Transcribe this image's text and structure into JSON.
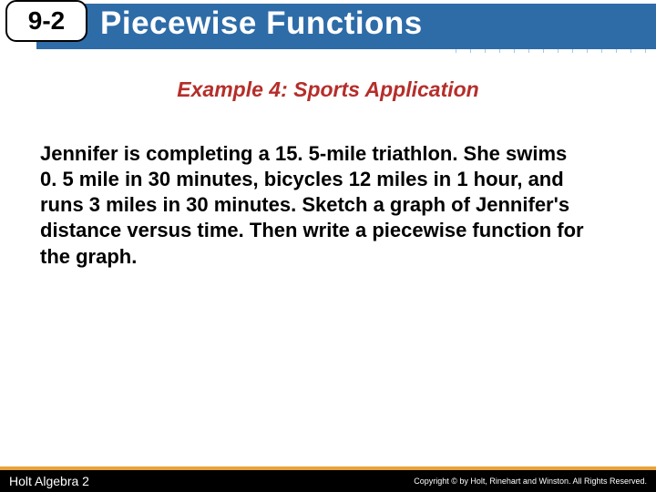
{
  "header": {
    "section_number": "9-2",
    "title": "Piecewise Functions",
    "banner_color": "#2e6ca8",
    "grid_color": "#5b8fb8"
  },
  "subtitle": {
    "text": "Example 4: Sports Application",
    "color": "#b52e2a"
  },
  "body": {
    "text": "Jennifer is completing a 15. 5-mile triathlon. She swims 0. 5 mile in 30 minutes, bicycles 12 miles in 1 hour, and runs 3 miles in 30 minutes. Sketch a graph of Jennifer's distance versus time. Then write a piecewise function for the graph."
  },
  "footer": {
    "left": "Holt Algebra 2",
    "right": "Copyright © by Holt, Rinehart and Winston. All Rights Reserved.",
    "stripe_color": "#e8a23a"
  }
}
